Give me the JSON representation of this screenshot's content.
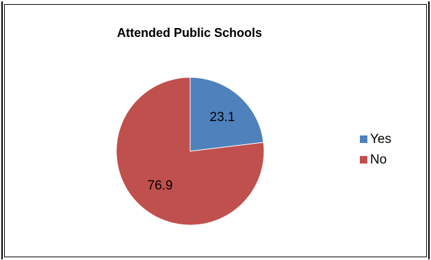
{
  "page_fragment_text": "",
  "chart_data": {
    "type": "pie",
    "title": "Attended Public Schools",
    "categories": [
      "Yes",
      "No"
    ],
    "values": [
      23.1,
      76.9
    ],
    "colors": [
      "#4f81bd",
      "#c0504d"
    ],
    "data_labels": [
      "23.1",
      "76.9"
    ],
    "legend": {
      "position": "right",
      "items": [
        {
          "label": "Yes",
          "color": "#4f81bd"
        },
        {
          "label": "No",
          "color": "#c0504d"
        }
      ]
    }
  }
}
